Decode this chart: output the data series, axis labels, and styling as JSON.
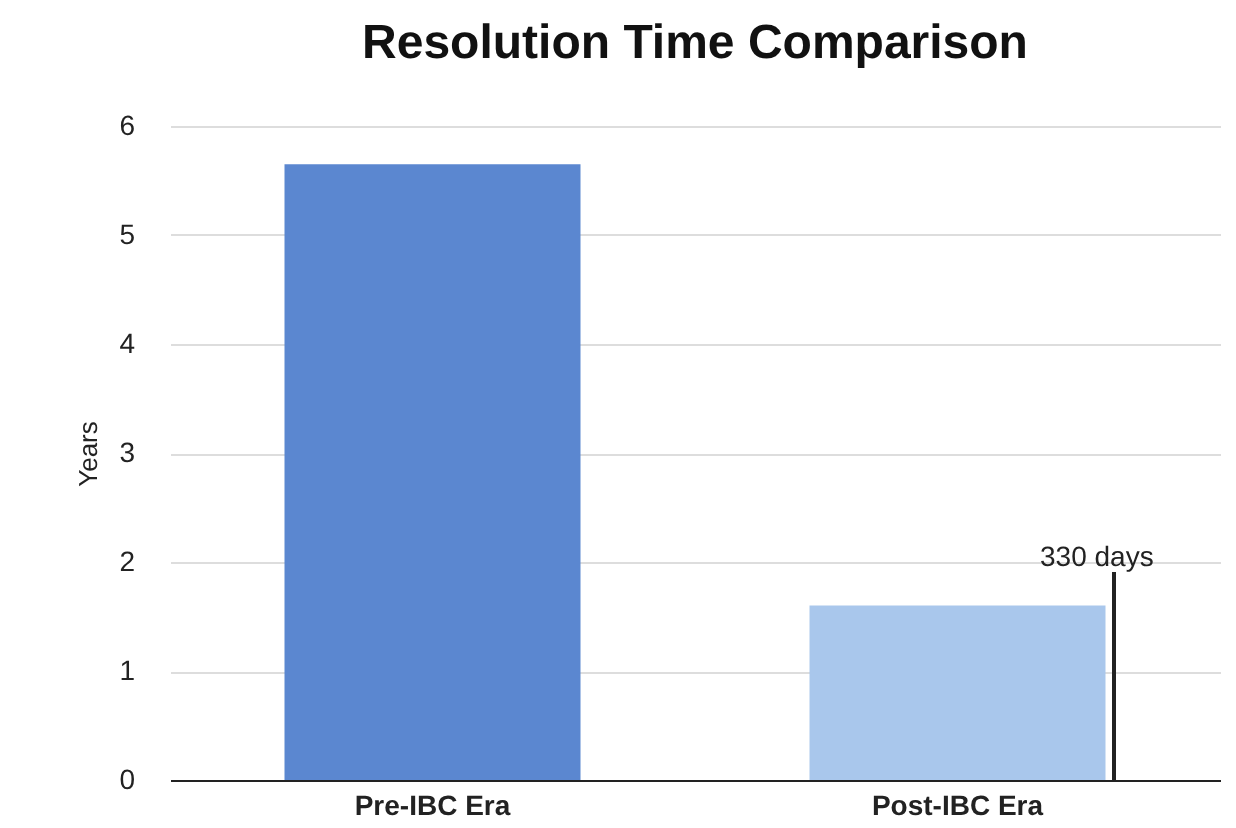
{
  "chart_data": {
    "type": "bar",
    "title": "Resolution Time Comparison",
    "ylabel": "Years",
    "categories": [
      "Pre-IBC Era",
      "Post-IBC Era"
    ],
    "series": [
      {
        "colors": [
          "#5b87d0",
          "#a9c7ec"
        ],
        "values": [
          5.65,
          1.6
        ]
      }
    ],
    "ylim": [
      0,
      6
    ],
    "yticks": [
      0,
      1,
      2,
      3,
      4,
      5,
      6
    ],
    "grid": "y",
    "annotations": [
      "330 days"
    ]
  }
}
